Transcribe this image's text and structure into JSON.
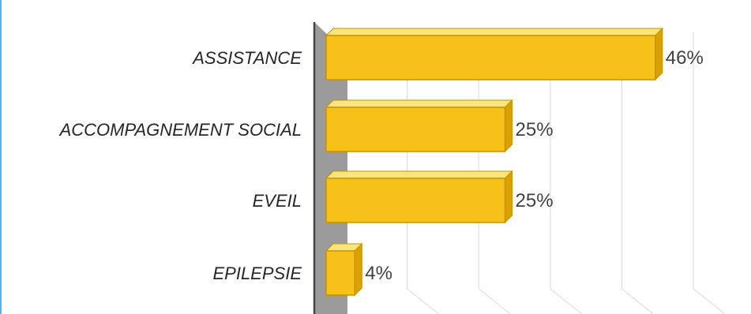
{
  "chart_data": {
    "type": "bar",
    "orientation": "horizontal",
    "style": "3d",
    "categories": [
      "ASSISTANCE",
      "ACCOMPAGNEMENT SOCIAL",
      "EVEIL",
      "EPILEPSIE"
    ],
    "values": [
      46,
      25,
      25,
      4
    ],
    "value_labels": [
      "46%",
      "25%",
      "25%",
      "4%"
    ],
    "title": "",
    "xlabel": "",
    "ylabel": "",
    "xlim": [
      0,
      50
    ],
    "grid": true,
    "legend": "none",
    "colors": {
      "bar_front": "#F6C21A",
      "bar_top": "#FBE57A",
      "bar_side": "#D9A106",
      "bar_edge": "#C89200",
      "wall": "#9B9B9B",
      "frame": "#4DB8E2"
    }
  }
}
